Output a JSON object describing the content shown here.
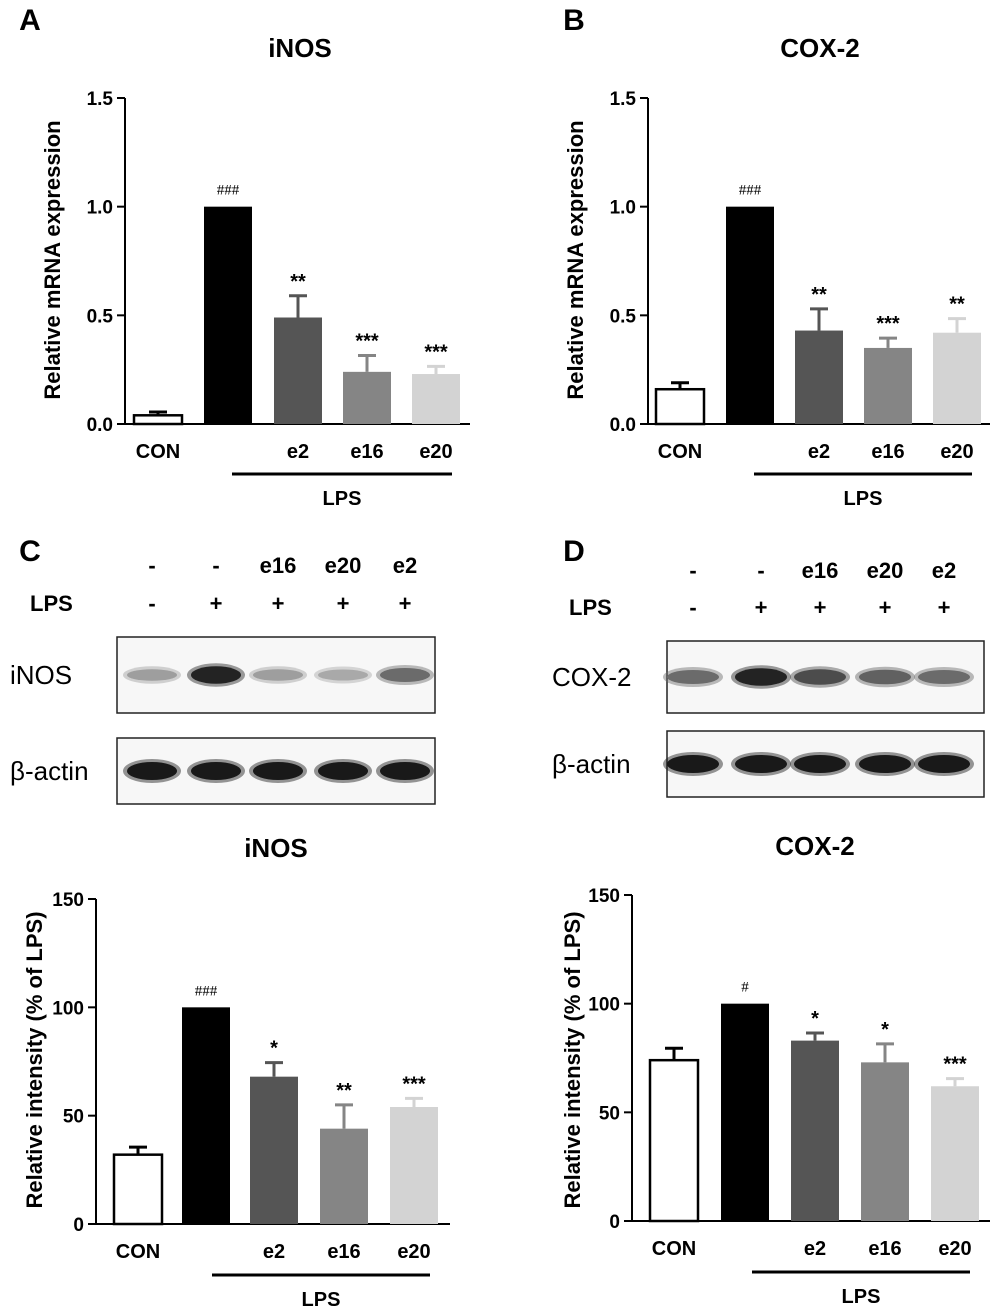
{
  "panels": {
    "A": {
      "letter": "A"
    },
    "B": {
      "letter": "B"
    },
    "C": {
      "letter": "C"
    },
    "D": {
      "letter": "D"
    }
  },
  "blots": {
    "C": {
      "treatment_row": [
        "-",
        "-",
        "e16",
        "e20",
        "e2"
      ],
      "lps_label": "LPS",
      "lps_row": [
        "-",
        "+",
        "+",
        "+",
        "+"
      ],
      "bands": [
        {
          "label": "iNOS",
          "intensities": [
            0.35,
            0.95,
            0.35,
            0.3,
            0.6
          ]
        },
        {
          "label": "β-actin",
          "intensities": [
            1,
            1,
            1,
            1,
            1
          ]
        }
      ]
    },
    "D": {
      "treatment_row": [
        "-",
        "-",
        "e16",
        "e20",
        "e2"
      ],
      "lps_label": "LPS",
      "lps_row": [
        "-",
        "+",
        "+",
        "+",
        "+"
      ],
      "bands": [
        {
          "label": "COX-2",
          "intensities": [
            0.6,
            0.95,
            0.75,
            0.65,
            0.6
          ]
        },
        {
          "label": "β-actin",
          "intensities": [
            1,
            1,
            1,
            1,
            1
          ]
        }
      ]
    }
  },
  "chart_data": [
    {
      "panel": "A",
      "type": "bar",
      "title": "iNOS",
      "ylabel": "Relative mRNA expression",
      "ylim": [
        0,
        1.5
      ],
      "yticks": [
        "0.0",
        "0.5",
        "1.0",
        "1.5"
      ],
      "categories": [
        "CON",
        "",
        "e2",
        "e16",
        "e20"
      ],
      "values": [
        0.04,
        1.0,
        0.49,
        0.24,
        0.23
      ],
      "errors": [
        0.015,
        0,
        0.1,
        0.075,
        0.035
      ],
      "annotations": [
        "",
        "###",
        "**",
        "***",
        "***"
      ],
      "group_label": "LPS"
    },
    {
      "panel": "B",
      "type": "bar",
      "title": "COX-2",
      "ylabel": "Relative mRNA expression",
      "ylim": [
        0,
        1.5
      ],
      "yticks": [
        "0.0",
        "0.5",
        "1.0",
        "1.5"
      ],
      "categories": [
        "CON",
        "",
        "e2",
        "e16",
        "e20"
      ],
      "values": [
        0.16,
        1.0,
        0.43,
        0.35,
        0.42
      ],
      "errors": [
        0.03,
        0,
        0.1,
        0.045,
        0.065
      ],
      "annotations": [
        "",
        "###",
        "**",
        "***",
        "**"
      ],
      "group_label": "LPS"
    },
    {
      "panel": "C",
      "type": "bar",
      "title": "iNOS",
      "ylabel": "Relative intensity  (% of LPS)",
      "ylim": [
        0,
        150
      ],
      "yticks": [
        "0",
        "50",
        "100",
        "150"
      ],
      "categories": [
        "CON",
        "",
        "e2",
        "e16",
        "e20"
      ],
      "values": [
        32,
        100,
        68,
        44,
        54
      ],
      "errors": [
        3.5,
        0,
        6.5,
        11,
        4
      ],
      "annotations": [
        "",
        "###",
        "*",
        "**",
        "***"
      ],
      "group_label": "LPS"
    },
    {
      "panel": "D",
      "type": "bar",
      "title": "COX-2",
      "ylabel": "Relative intensity  (% of LPS)",
      "ylim": [
        0,
        150
      ],
      "yticks": [
        "0",
        "50",
        "100",
        "150"
      ],
      "categories": [
        "CON",
        "",
        "e2",
        "e16",
        "e20"
      ],
      "values": [
        74,
        100,
        83,
        73,
        62
      ],
      "errors": [
        5.5,
        0,
        3.5,
        8.5,
        3.5
      ],
      "annotations": [
        "",
        "#",
        "*",
        "*",
        "***"
      ],
      "group_label": "LPS"
    }
  ],
  "colors": {
    "bars": [
      "#ffffff",
      "#000000",
      "#555555",
      "#858585",
      "#d3d3d3"
    ],
    "axis": "#000000"
  }
}
